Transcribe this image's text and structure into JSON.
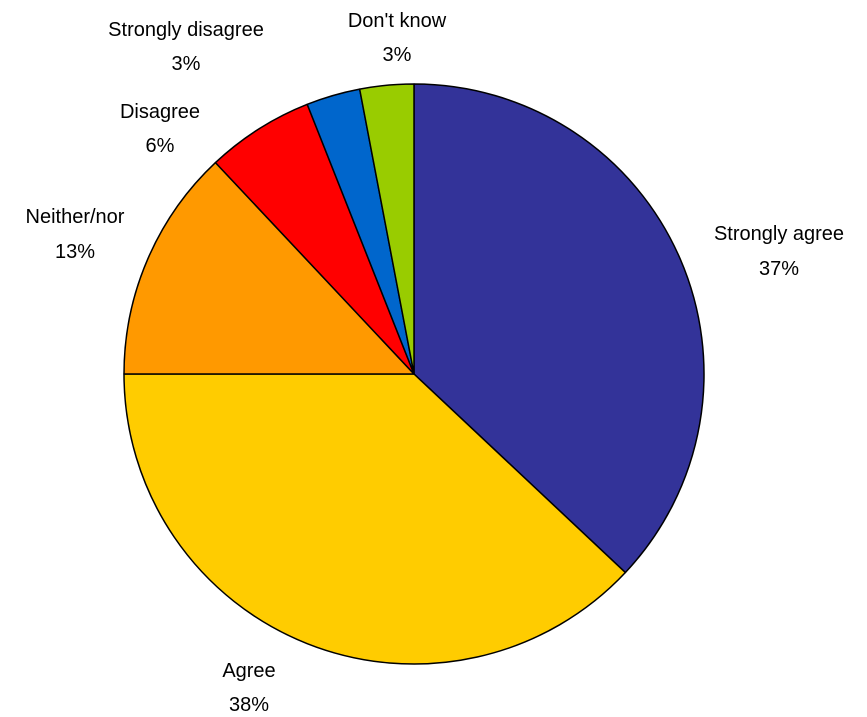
{
  "chart_data": {
    "type": "pie",
    "title": "",
    "start": "12 o'clock",
    "direction": "clockwise",
    "slices": [
      {
        "label": "Strongly agree",
        "value_label": "37%",
        "value": 37,
        "color": "#333399"
      },
      {
        "label": "Agree",
        "value_label": "38%",
        "value": 38,
        "color": "#FFCC00"
      },
      {
        "label": "Neither/nor",
        "value_label": "13%",
        "value": 13,
        "color": "#FF9900"
      },
      {
        "label": "Disagree",
        "value_label": "6%",
        "value": 6,
        "color": "#FF0000"
      },
      {
        "label": "Strongly disagree",
        "value_label": "3%",
        "value": 3,
        "color": "#0066CC"
      },
      {
        "label": "Don't know",
        "value_label": "3%",
        "value": 3,
        "color": "#99CC00"
      }
    ]
  }
}
